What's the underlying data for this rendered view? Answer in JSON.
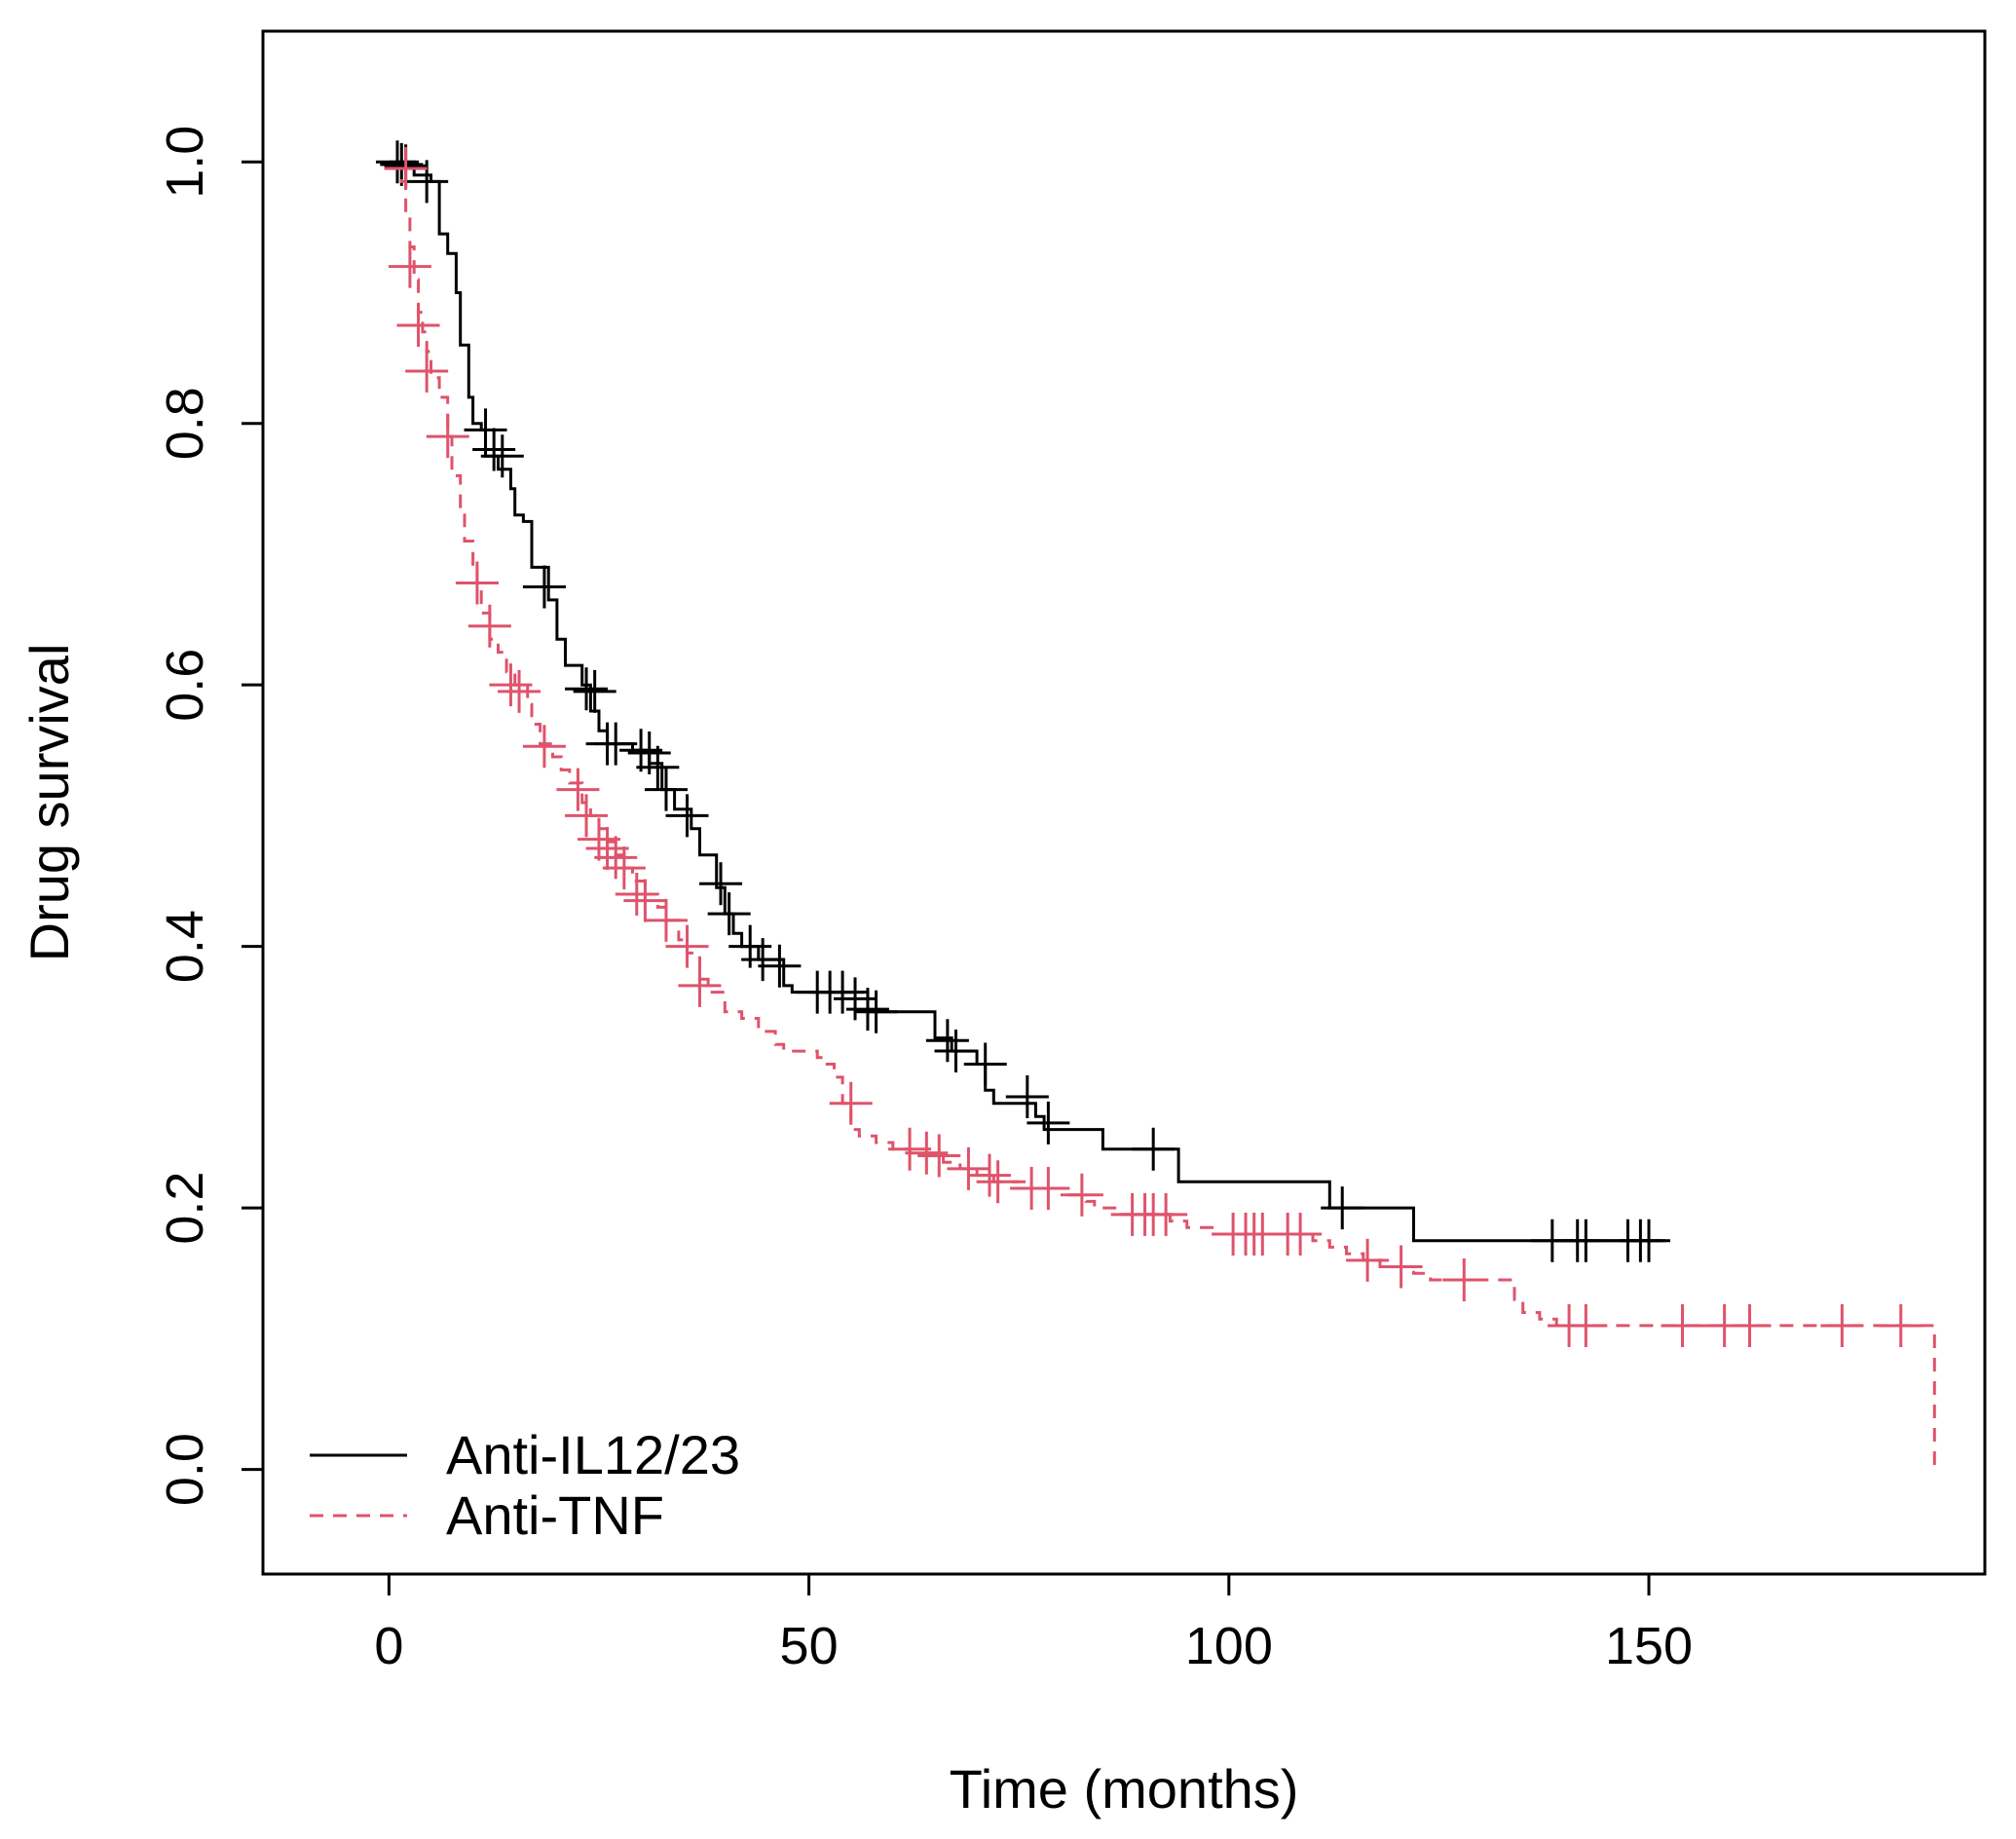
{
  "chart_data": {
    "type": "line",
    "subtype": "kaplan-meier step",
    "xlabel": "Time (months)",
    "ylabel": "Drug survival",
    "xlim": [
      -15,
      190
    ],
    "ylim": [
      -0.08,
      1.1
    ],
    "xticks": [
      0,
      50,
      100,
      150
    ],
    "xtick_labels": [
      "0",
      "50",
      "100",
      "150"
    ],
    "yticks": [
      0.0,
      0.2,
      0.4,
      0.6,
      0.8,
      1.0
    ],
    "ytick_labels": [
      "0.0",
      "0.2",
      "0.4",
      "0.6",
      "0.8",
      "1.0"
    ],
    "grid": false,
    "legend_position": "bottom-left",
    "series": [
      {
        "name": "Anti-IL12/23",
        "color": "#000000",
        "linestyle": "solid",
        "steps": [
          [
            0,
            1.0
          ],
          [
            3,
            0.99
          ],
          [
            5,
            0.985
          ],
          [
            6,
            0.945
          ],
          [
            7,
            0.93
          ],
          [
            8,
            0.9
          ],
          [
            8.5,
            0.86
          ],
          [
            9.5,
            0.82
          ],
          [
            10,
            0.8
          ],
          [
            11,
            0.795
          ],
          [
            11.5,
            0.775
          ],
          [
            13,
            0.765
          ],
          [
            14.5,
            0.75
          ],
          [
            15,
            0.73
          ],
          [
            16,
            0.725
          ],
          [
            17,
            0.69
          ],
          [
            19,
            0.665
          ],
          [
            20,
            0.635
          ],
          [
            21,
            0.615
          ],
          [
            23,
            0.6
          ],
          [
            24,
            0.58
          ],
          [
            25,
            0.565
          ],
          [
            26,
            0.555
          ],
          [
            29,
            0.55
          ],
          [
            31,
            0.54
          ],
          [
            32.5,
            0.52
          ],
          [
            34,
            0.505
          ],
          [
            36,
            0.49
          ],
          [
            37,
            0.47
          ],
          [
            39,
            0.445
          ],
          [
            40,
            0.425
          ],
          [
            41,
            0.41
          ],
          [
            42,
            0.4
          ],
          [
            44,
            0.39
          ],
          [
            47,
            0.37
          ],
          [
            48,
            0.365
          ],
          [
            57,
            0.35
          ],
          [
            65,
            0.33
          ],
          [
            67,
            0.32
          ],
          [
            70,
            0.31
          ],
          [
            71,
            0.29
          ],
          [
            72,
            0.28
          ],
          [
            77,
            0.27
          ],
          [
            78,
            0.26
          ],
          [
            85,
            0.245
          ],
          [
            94,
            0.22
          ],
          [
            112,
            0.2
          ],
          [
            122,
            0.175
          ],
          [
            152,
            0.175
          ]
        ],
        "censored": [
          [
            1,
            1.0
          ],
          [
            1.5,
            0.998
          ],
          [
            2,
            0.997
          ],
          [
            4.5,
            0.985
          ],
          [
            11.5,
            0.795
          ],
          [
            12.5,
            0.78
          ],
          [
            13.5,
            0.775
          ],
          [
            18.5,
            0.675
          ],
          [
            23.5,
            0.597
          ],
          [
            24.5,
            0.595
          ],
          [
            26,
            0.555
          ],
          [
            27,
            0.555
          ],
          [
            30,
            0.55
          ],
          [
            31,
            0.548
          ],
          [
            32,
            0.537
          ],
          [
            33,
            0.52
          ],
          [
            35.5,
            0.5
          ],
          [
            39.5,
            0.448
          ],
          [
            40.5,
            0.425
          ],
          [
            43,
            0.4
          ],
          [
            44.5,
            0.39
          ],
          [
            46.5,
            0.385
          ],
          [
            51,
            0.365
          ],
          [
            52.5,
            0.365
          ],
          [
            54,
            0.365
          ],
          [
            55.5,
            0.36
          ],
          [
            57,
            0.352
          ],
          [
            58,
            0.35
          ],
          [
            66.5,
            0.328
          ],
          [
            67.5,
            0.32
          ],
          [
            71,
            0.31
          ],
          [
            76,
            0.285
          ],
          [
            78.5,
            0.265
          ],
          [
            91,
            0.245
          ],
          [
            113.5,
            0.2
          ],
          [
            138.5,
            0.175
          ],
          [
            141.5,
            0.175
          ],
          [
            142.5,
            0.175
          ],
          [
            147.5,
            0.175
          ],
          [
            149,
            0.175
          ],
          [
            150,
            0.175
          ]
        ]
      },
      {
        "name": "Anti-TNF",
        "color": "#DF536B",
        "linestyle": "dashed",
        "steps": [
          [
            0,
            0.995
          ],
          [
            1.5,
            0.985
          ],
          [
            2,
            0.96
          ],
          [
            2.5,
            0.935
          ],
          [
            3,
            0.91
          ],
          [
            3.5,
            0.885
          ],
          [
            4,
            0.87
          ],
          [
            4.5,
            0.855
          ],
          [
            5,
            0.835
          ],
          [
            6,
            0.82
          ],
          [
            7,
            0.79
          ],
          [
            7.5,
            0.76
          ],
          [
            8.5,
            0.73
          ],
          [
            9,
            0.71
          ],
          [
            10,
            0.69
          ],
          [
            10.5,
            0.675
          ],
          [
            11,
            0.655
          ],
          [
            12,
            0.635
          ],
          [
            13,
            0.625
          ],
          [
            14,
            0.61
          ],
          [
            15,
            0.6
          ],
          [
            16.5,
            0.585
          ],
          [
            17,
            0.57
          ],
          [
            18,
            0.555
          ],
          [
            19.5,
            0.545
          ],
          [
            20.5,
            0.535
          ],
          [
            21.5,
            0.525
          ],
          [
            23,
            0.51
          ],
          [
            24,
            0.5
          ],
          [
            25,
            0.49
          ],
          [
            26,
            0.48
          ],
          [
            27,
            0.47
          ],
          [
            28,
            0.46
          ],
          [
            29,
            0.45
          ],
          [
            30.5,
            0.44
          ],
          [
            32,
            0.43
          ],
          [
            33,
            0.42
          ],
          [
            34.5,
            0.405
          ],
          [
            35.5,
            0.395
          ],
          [
            37,
            0.375
          ],
          [
            38,
            0.365
          ],
          [
            40,
            0.35
          ],
          [
            42,
            0.345
          ],
          [
            44,
            0.335
          ],
          [
            46,
            0.325
          ],
          [
            47,
            0.32
          ],
          [
            51,
            0.315
          ],
          [
            52,
            0.31
          ],
          [
            53,
            0.3
          ],
          [
            54,
            0.28
          ],
          [
            55,
            0.26
          ],
          [
            56,
            0.255
          ],
          [
            58,
            0.25
          ],
          [
            60,
            0.245
          ],
          [
            62,
            0.242
          ],
          [
            66,
            0.235
          ],
          [
            68,
            0.23
          ],
          [
            70,
            0.225
          ],
          [
            72,
            0.22
          ],
          [
            76,
            0.215
          ],
          [
            81,
            0.21
          ],
          [
            83,
            0.205
          ],
          [
            84,
            0.2
          ],
          [
            87,
            0.195
          ],
          [
            93,
            0.19
          ],
          [
            95,
            0.185
          ],
          [
            98,
            0.18
          ],
          [
            110,
            0.175
          ],
          [
            112,
            0.17
          ],
          [
            114,
            0.165
          ],
          [
            116,
            0.16
          ],
          [
            118,
            0.155
          ],
          [
            122,
            0.15
          ],
          [
            124,
            0.145
          ],
          [
            134,
            0.13
          ],
          [
            135,
            0.12
          ],
          [
            137,
            0.115
          ],
          [
            139,
            0.11
          ],
          [
            184,
            0.11
          ],
          [
            184,
            0.0
          ]
        ],
        "censored": [
          [
            2,
            0.995
          ],
          [
            2.5,
            0.92
          ],
          [
            3.5,
            0.875
          ],
          [
            4.5,
            0.84
          ],
          [
            7,
            0.79
          ],
          [
            10.5,
            0.678
          ],
          [
            12,
            0.645
          ],
          [
            14.5,
            0.6
          ],
          [
            15.5,
            0.595
          ],
          [
            18.5,
            0.553
          ],
          [
            22.5,
            0.52
          ],
          [
            23.5,
            0.5
          ],
          [
            25,
            0.482
          ],
          [
            26,
            0.475
          ],
          [
            27,
            0.468
          ],
          [
            28,
            0.46
          ],
          [
            29.5,
            0.44
          ],
          [
            30.5,
            0.435
          ],
          [
            33,
            0.42
          ],
          [
            35.5,
            0.4
          ],
          [
            37,
            0.37
          ],
          [
            55,
            0.28
          ],
          [
            62,
            0.245
          ],
          [
            64,
            0.242
          ],
          [
            65.5,
            0.24
          ],
          [
            69,
            0.23
          ],
          [
            71.5,
            0.225
          ],
          [
            72.5,
            0.22
          ],
          [
            76.5,
            0.215
          ],
          [
            78.5,
            0.215
          ],
          [
            82.5,
            0.21
          ],
          [
            88.5,
            0.195
          ],
          [
            90,
            0.195
          ],
          [
            91,
            0.195
          ],
          [
            92.5,
            0.195
          ],
          [
            100.5,
            0.18
          ],
          [
            102,
            0.18
          ],
          [
            103,
            0.18
          ],
          [
            104,
            0.18
          ],
          [
            107,
            0.18
          ],
          [
            108.5,
            0.18
          ],
          [
            116.5,
            0.16
          ],
          [
            120.5,
            0.155
          ],
          [
            128,
            0.145
          ],
          [
            140.5,
            0.11
          ],
          [
            142.5,
            0.11
          ],
          [
            154,
            0.11
          ],
          [
            159,
            0.11
          ],
          [
            162,
            0.11
          ],
          [
            173,
            0.11
          ],
          [
            180,
            0.11
          ]
        ]
      }
    ]
  }
}
